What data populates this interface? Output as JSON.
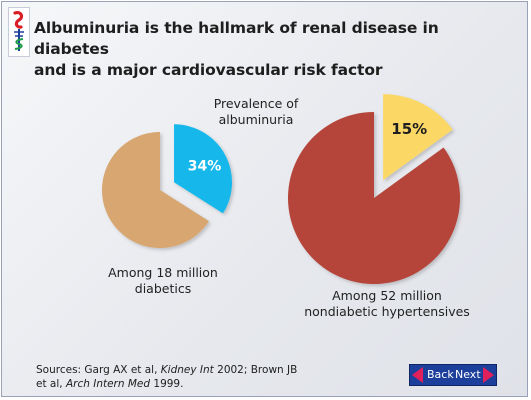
{
  "title": {
    "line1": "Albuminuria is the hallmark of renal disease in diabetes",
    "line2": "and is a major cardiovascular risk factor"
  },
  "annotation": {
    "line1": "Prevalence of",
    "line2": "albuminuria"
  },
  "chart_data": [
    {
      "type": "pie",
      "title": "",
      "slices": [
        {
          "label": "34%",
          "value": 34,
          "color": "#19b8ec",
          "exploded": true
        },
        {
          "label": "",
          "value": 66,
          "color": "#d7a671",
          "exploded": false
        }
      ],
      "caption": {
        "line1": "Among 18 million",
        "line2": "diabetics"
      }
    },
    {
      "type": "pie",
      "title": "",
      "slices": [
        {
          "label": "15%",
          "value": 15,
          "color": "#fbd866",
          "exploded": true
        },
        {
          "label": "",
          "value": 85,
          "color": "#b5443a",
          "exploded": false
        }
      ],
      "caption": {
        "line1": "Among 52 million",
        "line2": "nondiabetic hypertensives"
      }
    }
  ],
  "sources": {
    "prefix": "Sources: Garg AX et al, ",
    "journal1": "Kidney Int",
    "mid": " 2002; Brown JB et al, ",
    "journal2": "Arch Intern Med",
    "suffix": " 1999."
  },
  "nav": {
    "back_label": "Back",
    "next_label": "Next",
    "button_color": "#1d3f9c",
    "arrow_color": "#e0205a"
  },
  "logo": {
    "icon": "caduceus-logo-icon",
    "accent_red": "#d81f26",
    "accent_blue": "#1d3f9c"
  }
}
